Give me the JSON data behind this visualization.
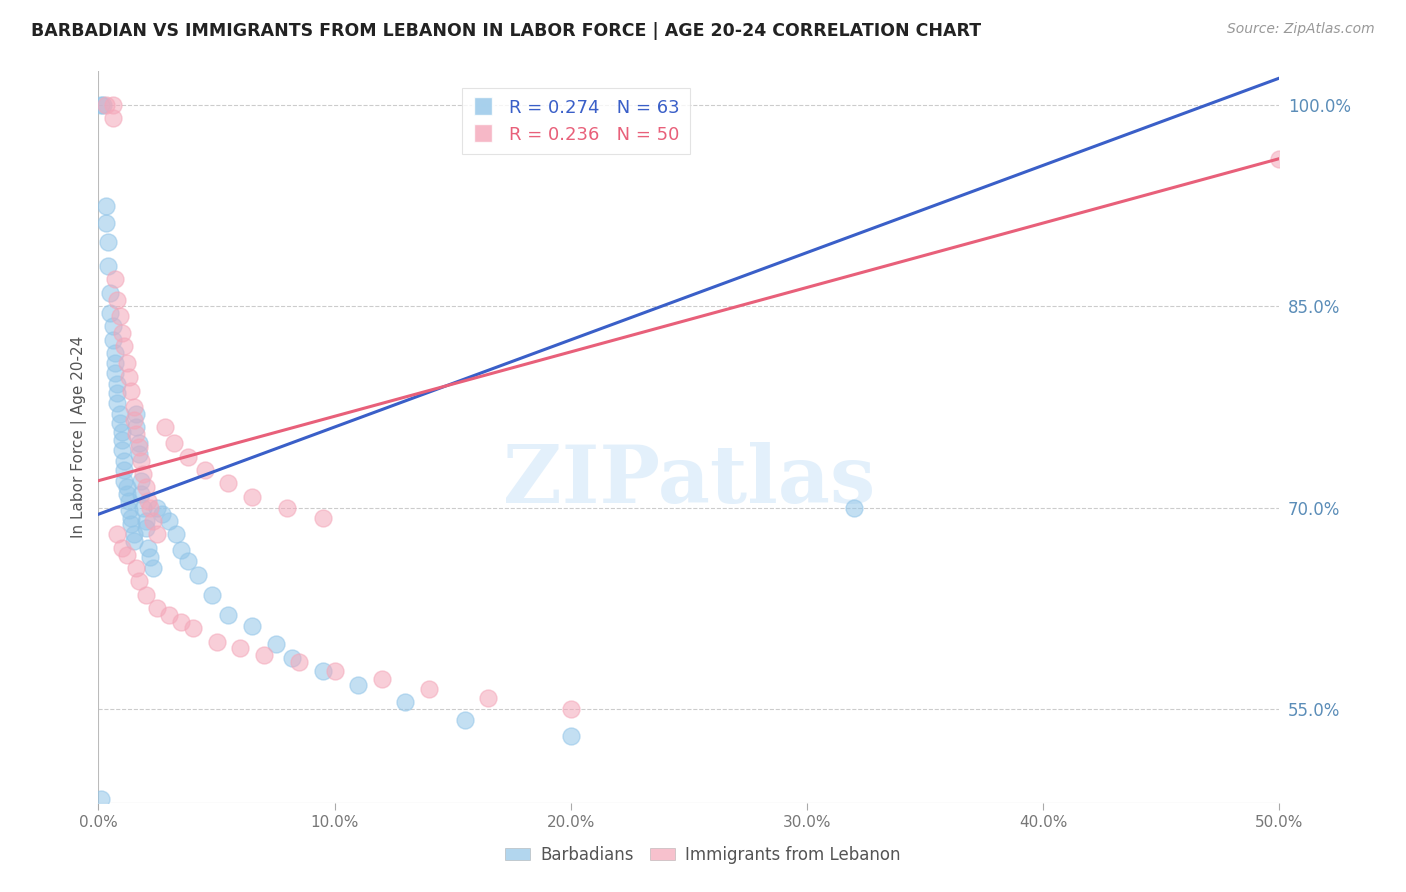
{
  "title": "BARBADIAN VS IMMIGRANTS FROM LEBANON IN LABOR FORCE | AGE 20-24 CORRELATION CHART",
  "source": "Source: ZipAtlas.com",
  "ylabel": "In Labor Force | Age 20-24",
  "watermark": "ZIPatlas",
  "xlim": [
    0.0,
    0.5
  ],
  "ylim": [
    0.48,
    1.025
  ],
  "xticks": [
    0.0,
    0.1,
    0.2,
    0.3,
    0.4,
    0.5
  ],
  "xticklabels": [
    "0.0%",
    "10.0%",
    "20.0%",
    "30.0%",
    "40.0%",
    "50.0%"
  ],
  "yticks_right": [
    0.55,
    0.7,
    0.85,
    1.0
  ],
  "ytick_right_labels": [
    "55.0%",
    "70.0%",
    "85.0%",
    "100.0%"
  ],
  "grid_color": "#cccccc",
  "blue_color": "#92C5E8",
  "pink_color": "#F4A7B9",
  "blue_line_color": "#3A5FC8",
  "pink_line_color": "#E8607A",
  "right_label_color": "#5B8DB8",
  "tick_label_color": "#777777",
  "legend_label_blue": "Barbadians",
  "legend_label_pink": "Immigrants from Lebanon",
  "legend_R_blue": "0.274",
  "legend_N_blue": "63",
  "legend_R_pink": "0.236",
  "legend_N_pink": "50",
  "blue_line_x0": 0.0,
  "blue_line_y0": 0.695,
  "blue_line_x1": 0.5,
  "blue_line_y1": 1.02,
  "pink_line_x0": 0.0,
  "pink_line_y0": 0.72,
  "pink_line_x1": 0.5,
  "pink_line_y1": 0.96,
  "blue_scatter_x": [
    0.001,
    0.002,
    0.003,
    0.003,
    0.004,
    0.004,
    0.005,
    0.005,
    0.006,
    0.006,
    0.007,
    0.007,
    0.007,
    0.008,
    0.008,
    0.008,
    0.009,
    0.009,
    0.01,
    0.01,
    0.01,
    0.011,
    0.011,
    0.011,
    0.012,
    0.012,
    0.013,
    0.013,
    0.014,
    0.014,
    0.015,
    0.015,
    0.016,
    0.016,
    0.017,
    0.017,
    0.018,
    0.018,
    0.019,
    0.02,
    0.02,
    0.021,
    0.022,
    0.023,
    0.025,
    0.027,
    0.03,
    0.033,
    0.035,
    0.038,
    0.042,
    0.048,
    0.055,
    0.065,
    0.075,
    0.082,
    0.095,
    0.11,
    0.13,
    0.155,
    0.2,
    0.32,
    0.001
  ],
  "blue_scatter_y": [
    1.0,
    1.0,
    0.925,
    0.912,
    0.898,
    0.88,
    0.86,
    0.845,
    0.835,
    0.825,
    0.815,
    0.808,
    0.8,
    0.792,
    0.785,
    0.778,
    0.77,
    0.763,
    0.756,
    0.75,
    0.743,
    0.735,
    0.728,
    0.72,
    0.715,
    0.71,
    0.705,
    0.698,
    0.692,
    0.688,
    0.68,
    0.675,
    0.77,
    0.76,
    0.748,
    0.74,
    0.72,
    0.71,
    0.7,
    0.69,
    0.685,
    0.67,
    0.663,
    0.655,
    0.7,
    0.695,
    0.69,
    0.68,
    0.668,
    0.66,
    0.65,
    0.635,
    0.62,
    0.612,
    0.598,
    0.588,
    0.578,
    0.568,
    0.555,
    0.542,
    0.53,
    0.7,
    0.483
  ],
  "pink_scatter_x": [
    0.003,
    0.006,
    0.006,
    0.007,
    0.008,
    0.009,
    0.01,
    0.011,
    0.012,
    0.013,
    0.014,
    0.015,
    0.015,
    0.016,
    0.017,
    0.018,
    0.019,
    0.02,
    0.021,
    0.022,
    0.023,
    0.025,
    0.028,
    0.032,
    0.038,
    0.045,
    0.055,
    0.065,
    0.08,
    0.095,
    0.008,
    0.01,
    0.012,
    0.016,
    0.017,
    0.02,
    0.025,
    0.03,
    0.035,
    0.04,
    0.05,
    0.06,
    0.07,
    0.085,
    0.1,
    0.12,
    0.14,
    0.165,
    0.2,
    0.5
  ],
  "pink_scatter_y": [
    1.0,
    1.0,
    0.99,
    0.87,
    0.855,
    0.843,
    0.83,
    0.82,
    0.808,
    0.797,
    0.787,
    0.775,
    0.765,
    0.755,
    0.745,
    0.735,
    0.725,
    0.715,
    0.705,
    0.7,
    0.69,
    0.68,
    0.76,
    0.748,
    0.738,
    0.728,
    0.718,
    0.708,
    0.7,
    0.692,
    0.68,
    0.67,
    0.665,
    0.655,
    0.645,
    0.635,
    0.625,
    0.62,
    0.615,
    0.61,
    0.6,
    0.595,
    0.59,
    0.585,
    0.578,
    0.572,
    0.565,
    0.558,
    0.55,
    0.96
  ]
}
